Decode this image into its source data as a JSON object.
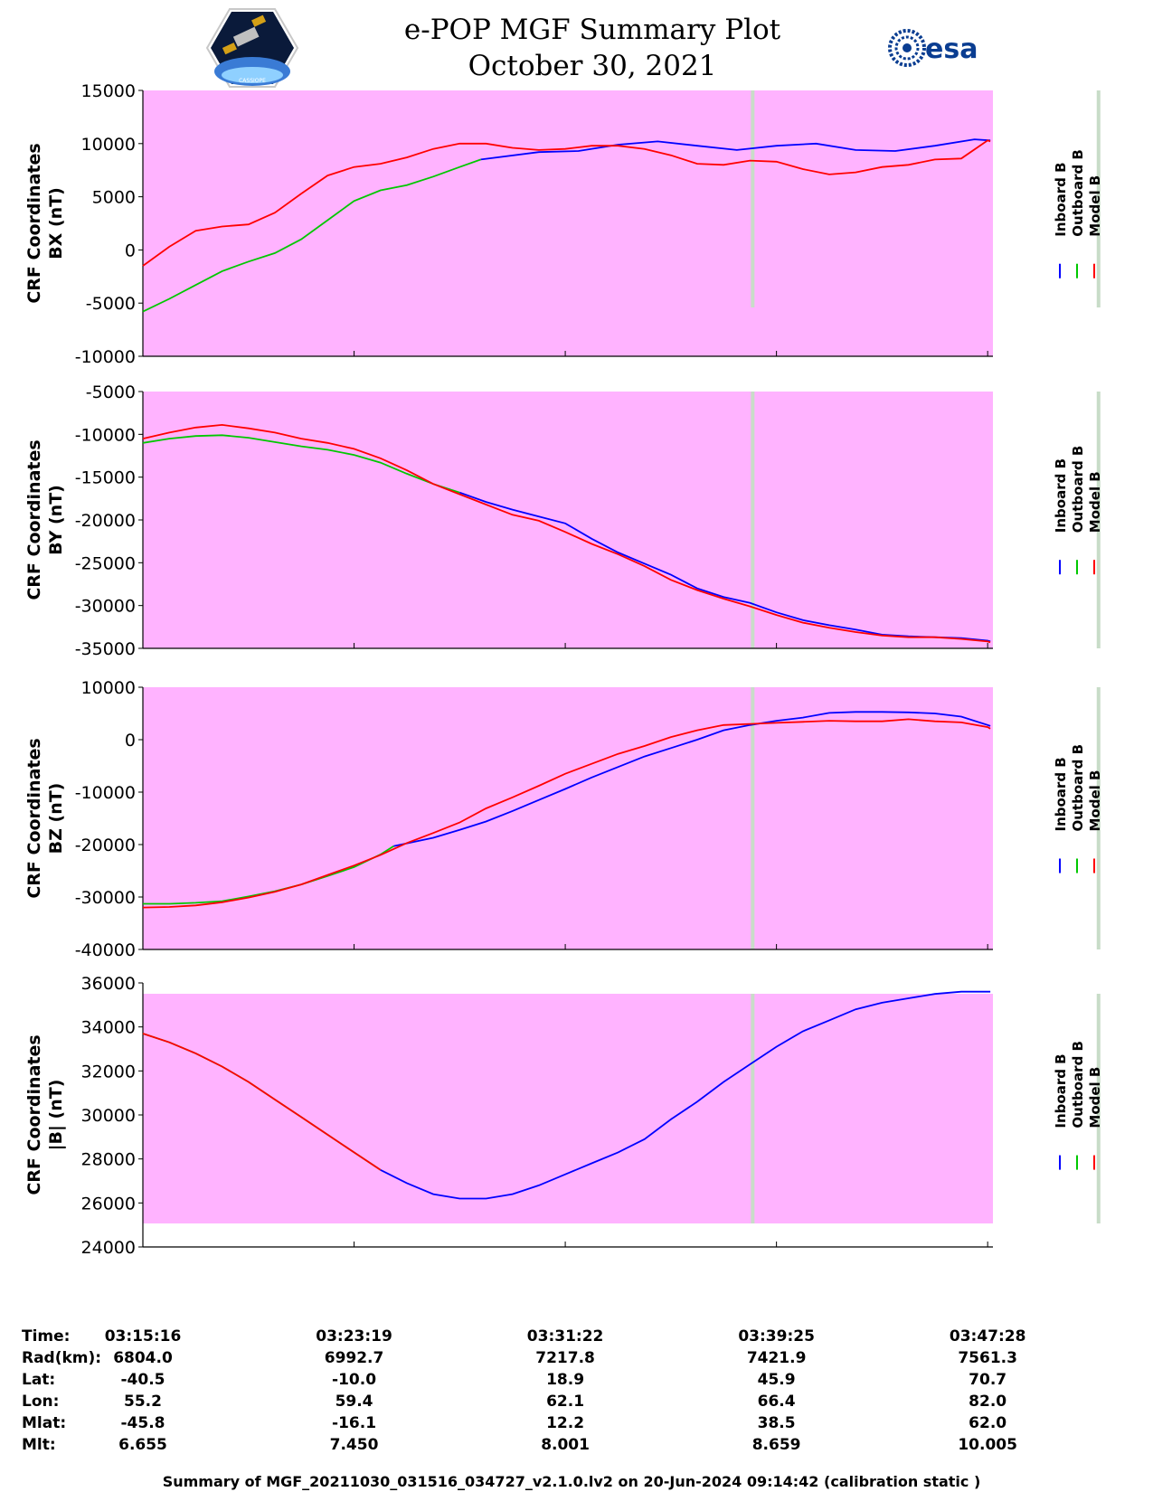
{
  "header": {
    "title_line1": "e-POP MGF Summary Plot",
    "title_line2": "October 30, 2021",
    "left_logo": "cassiope-mission-patch",
    "left_logo_text": "CASSIOPE",
    "right_logo": "esa",
    "right_logo_text": "esa"
  },
  "legend": [
    "Inboard B",
    "Outboard B",
    "Model B"
  ],
  "colors": {
    "background": "#ffb3ff",
    "inboard": "#0000ff",
    "outboard": "#00c800",
    "model": "#ff0000",
    "gap": "#c8dcc8"
  },
  "chart_data": [
    {
      "type": "line",
      "ylabel_line1": "CRF Coordinates",
      "ylabel_line2": "BX (nT)",
      "ylim": [
        -10000,
        15000
      ],
      "yticks": [
        15000,
        10000,
        5000,
        0,
        -5000,
        -10000
      ],
      "data_gaps_minutes": [
        23.1,
        36.2
      ],
      "series": [
        {
          "name": "Inboard B",
          "x": [
            12.8,
            15,
            16.5,
            18,
            19.5,
            21,
            22.5,
            24,
            25.5,
            27,
            28.5,
            30,
            31.5,
            32.1
          ],
          "y": [
            8500,
            9200,
            9300,
            9900,
            10200,
            9800,
            9400,
            9800,
            10000,
            9400,
            9300,
            9800,
            10400,
            10300
          ]
        },
        {
          "name": "Outboard B",
          "x": [
            0,
            1,
            2,
            3,
            4,
            5,
            6,
            7,
            8,
            9,
            10,
            11,
            12,
            12.8
          ],
          "y": [
            -5800,
            -4600,
            -3300,
            -2000,
            -1100,
            -300,
            1000,
            2800,
            4600,
            5600,
            6100,
            6900,
            7800,
            8500
          ]
        },
        {
          "name": "Model B",
          "x": [
            0,
            1,
            2,
            3,
            4,
            5,
            6,
            7,
            8,
            9,
            10,
            11,
            12,
            13,
            14,
            15,
            16,
            17,
            18,
            19,
            20,
            21,
            22,
            23,
            24,
            25,
            26,
            27,
            28,
            29,
            30,
            31,
            32,
            32.1
          ],
          "y": [
            -1500,
            300,
            1800,
            2200,
            2400,
            3500,
            5300,
            7000,
            7800,
            8100,
            8700,
            9500,
            10000,
            10000,
            9600,
            9400,
            9500,
            9800,
            9800,
            9500,
            8900,
            8100,
            8000,
            8400,
            8300,
            7600,
            7100,
            7300,
            7800,
            8000,
            8500,
            8600,
            10300,
            10200
          ]
        }
      ]
    },
    {
      "type": "line",
      "ylabel_line1": "CRF Coordinates",
      "ylabel_line2": "BY (nT)",
      "ylim": [
        -35000,
        -5000
      ],
      "yticks": [
        -5000,
        -10000,
        -15000,
        -20000,
        -25000,
        -30000,
        -35000
      ],
      "data_gaps_minutes": [
        23.1,
        36.2
      ],
      "series": [
        {
          "name": "Inboard B",
          "x": [
            12.0,
            13,
            14,
            15,
            16,
            17,
            18,
            19,
            20,
            21,
            22,
            23,
            24,
            25,
            26,
            27,
            28,
            29,
            30,
            31,
            32,
            32.1
          ],
          "y": [
            -16800,
            -17900,
            -18800,
            -19600,
            -20400,
            -22200,
            -23800,
            -25100,
            -26400,
            -28000,
            -29000,
            -29700,
            -30800,
            -31700,
            -32300,
            -32800,
            -33400,
            -33600,
            -33700,
            -33800,
            -34100,
            -34200
          ]
        },
        {
          "name": "Outboard B",
          "x": [
            0,
            1,
            2,
            3,
            4,
            5,
            6,
            7,
            8,
            9,
            10,
            11,
            12.0
          ],
          "y": [
            -11000,
            -10500,
            -10200,
            -10100,
            -10400,
            -10900,
            -11400,
            -11800,
            -12400,
            -13300,
            -14600,
            -15800,
            -16800
          ]
        },
        {
          "name": "Model B",
          "x": [
            0,
            1,
            2,
            3,
            4,
            5,
            6,
            7,
            8,
            9,
            10,
            11,
            12,
            13,
            14,
            15,
            16,
            17,
            18,
            19,
            20,
            21,
            22,
            23,
            24,
            25,
            26,
            27,
            28,
            29,
            30,
            31,
            32,
            32.1
          ],
          "y": [
            -10500,
            -9800,
            -9200,
            -8900,
            -9300,
            -9800,
            -10500,
            -11000,
            -11700,
            -12800,
            -14200,
            -15800,
            -17000,
            -18200,
            -19400,
            -20100,
            -21400,
            -22800,
            -24000,
            -25400,
            -27000,
            -28200,
            -29200,
            -30100,
            -31100,
            -32000,
            -32600,
            -33100,
            -33500,
            -33700,
            -33700,
            -33900,
            -34200,
            -34300
          ]
        }
      ]
    },
    {
      "type": "line",
      "ylabel_line1": "CRF Coordinates",
      "ylabel_line2": "BZ (nT)",
      "ylim": [
        -40000,
        10000
      ],
      "yticks": [
        10000,
        0,
        -10000,
        -20000,
        -30000,
        -40000
      ],
      "data_gaps_minutes": [
        23.1,
        36.2
      ],
      "series": [
        {
          "name": "Inboard B",
          "x": [
            9.5,
            11,
            12,
            13,
            14,
            15,
            16,
            17,
            18,
            19,
            20,
            21,
            22,
            23,
            24,
            25,
            26,
            27,
            28,
            29,
            30,
            31,
            32,
            32.1
          ],
          "y": [
            -20300,
            -18700,
            -17200,
            -15600,
            -13600,
            -11500,
            -9400,
            -7200,
            -5200,
            -3200,
            -1600,
            0,
            1800,
            2800,
            3600,
            4200,
            5100,
            5300,
            5300,
            5200,
            5000,
            4400,
            2800,
            2600
          ]
        },
        {
          "name": "Outboard B",
          "x": [
            0,
            1,
            2,
            3,
            4,
            5,
            6,
            7,
            8,
            9,
            9.5
          ],
          "y": [
            -31300,
            -31300,
            -31100,
            -30800,
            -29900,
            -28900,
            -27600,
            -26000,
            -24300,
            -21900,
            -20300
          ]
        },
        {
          "name": "Model B",
          "x": [
            0,
            1,
            2,
            3,
            4,
            5,
            6,
            7,
            8,
            9,
            10,
            11,
            12,
            13,
            14,
            15,
            16,
            17,
            18,
            19,
            20,
            21,
            22,
            23,
            24,
            25,
            26,
            27,
            28,
            29,
            30,
            31,
            32,
            32.1
          ],
          "y": [
            -32000,
            -31900,
            -31600,
            -31000,
            -30100,
            -29000,
            -27600,
            -25800,
            -24000,
            -22000,
            -19700,
            -17800,
            -15800,
            -13100,
            -11000,
            -8800,
            -6500,
            -4600,
            -2700,
            -1200,
            500,
            1800,
            2800,
            3000,
            3200,
            3400,
            3600,
            3500,
            3500,
            3900,
            3500,
            3300,
            2400,
            2100
          ]
        }
      ]
    },
    {
      "type": "line",
      "ylabel_line1": "CRF Coordinates",
      "ylabel_line2": "|B| (nT)",
      "ylim": [
        24000,
        36000
      ],
      "yticks": [
        36000,
        34000,
        32000,
        30000,
        28000,
        26000,
        24000
      ],
      "data_gaps_minutes": [
        23.1,
        36.2
      ],
      "series": [
        {
          "name": "Inboard B",
          "x": [
            9.0,
            10,
            11,
            12,
            13,
            14,
            15,
            16,
            17,
            18,
            19,
            20,
            21,
            22,
            23,
            24,
            25,
            26,
            27,
            28,
            29,
            30,
            31,
            32,
            32.1
          ],
          "y": [
            27500,
            26900,
            26400,
            26200,
            26200,
            26400,
            26800,
            27300,
            27800,
            28300,
            28900,
            29800,
            30600,
            31500,
            32300,
            33100,
            33800,
            34300,
            34800,
            35100,
            35300,
            35500,
            35600,
            35600,
            35600
          ]
        },
        {
          "name": "Outboard B",
          "x": [
            0,
            1,
            2,
            3,
            4,
            5,
            6,
            7,
            8,
            9.0
          ],
          "y": [
            33700,
            33300,
            32800,
            32200,
            31500,
            30700,
            29900,
            29100,
            28300,
            27500
          ]
        },
        {
          "name": "Model B",
          "x": [
            0,
            1,
            2,
            3,
            4,
            5,
            6,
            7,
            8,
            9.0
          ],
          "y": [
            33700,
            33300,
            32800,
            32200,
            31500,
            30700,
            29900,
            29100,
            28300,
            27500
          ]
        }
      ]
    }
  ],
  "ephemeris": {
    "row_labels": [
      "Time:",
      "Rad(km):",
      "Lat:",
      "Lon:",
      "Mlat:",
      "Mlt:"
    ],
    "columns": [
      {
        "minutes": 0,
        "values": [
          "03:15:16",
          "6804.0",
          "-40.5",
          "55.2",
          "-45.8",
          "6.655"
        ]
      },
      {
        "minutes": 8,
        "values": [
          "03:23:19",
          "6992.7",
          "-10.0",
          "59.4",
          "-16.1",
          "7.450"
        ]
      },
      {
        "minutes": 16,
        "values": [
          "03:31:22",
          "7217.8",
          "18.9",
          "62.1",
          "12.2",
          "8.001"
        ]
      },
      {
        "minutes": 24,
        "values": [
          "03:39:25",
          "7421.9",
          "45.9",
          "66.4",
          "38.5",
          "8.659"
        ]
      },
      {
        "minutes": 32,
        "values": [
          "03:47:28",
          "7561.3",
          "70.7",
          "82.0",
          "62.0",
          "10.005"
        ]
      }
    ]
  },
  "footer": "Summary of MGF_20211030_031516_034727_v2.1.0.lv2 on 20-Jun-2024 09:14:42 (calibration static )"
}
